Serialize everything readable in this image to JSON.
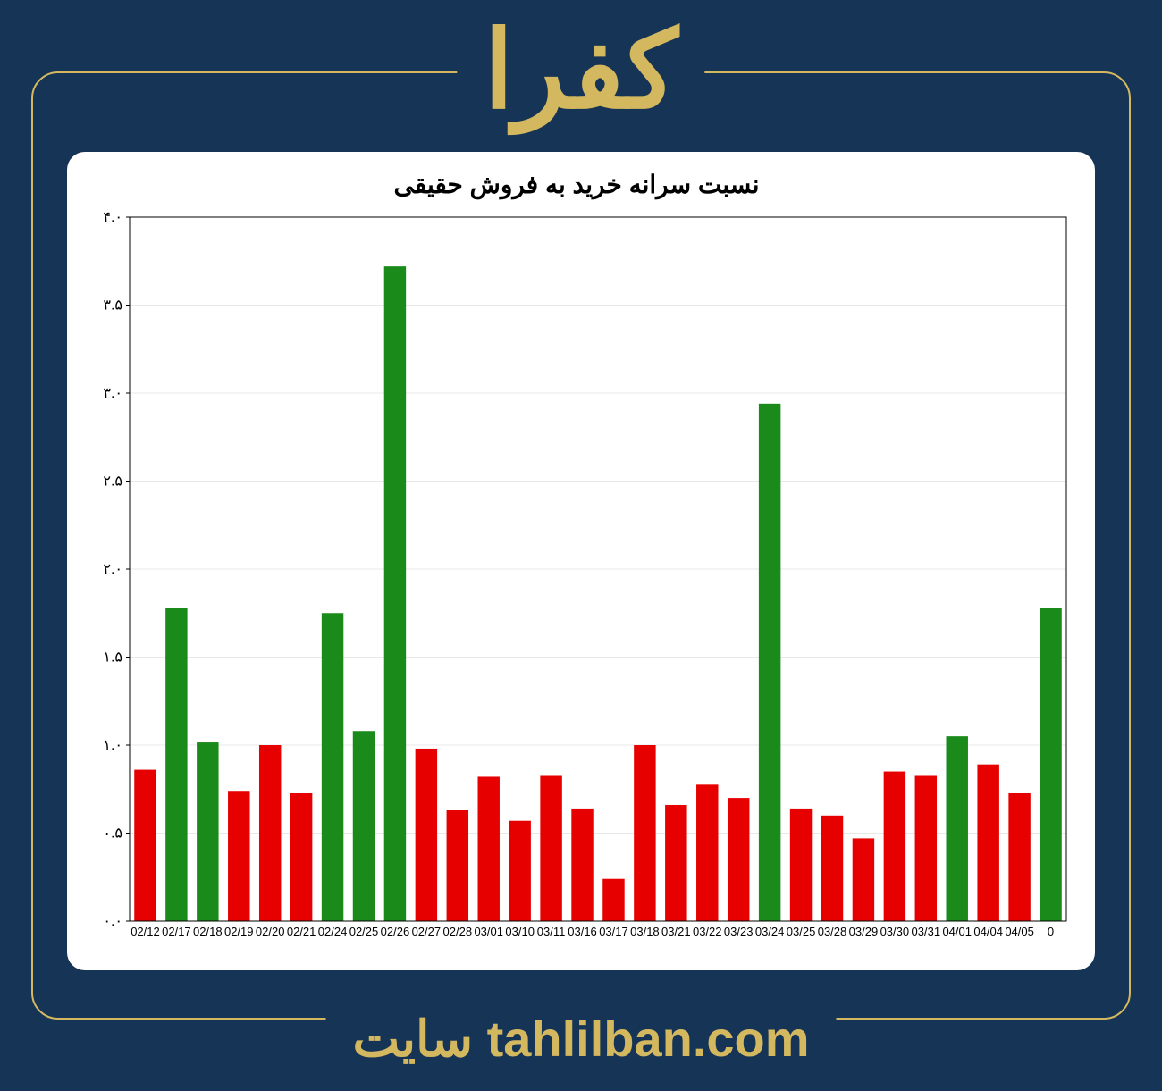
{
  "header": {
    "title": "کفرا"
  },
  "footer": {
    "text_site": "سایت",
    "text_url": "tahlilban.com"
  },
  "chart": {
    "type": "bar",
    "title": "نسبت سرانه خرید به فروش حقیقی",
    "title_fontsize": 28,
    "background_color": "#ffffff",
    "grid_color": "#e8e8e8",
    "bar_width_ratio": 0.7,
    "ylim": [
      0,
      4.0
    ],
    "yticks": [
      {
        "v": 0.0,
        "label": "٠.٠"
      },
      {
        "v": 0.5,
        "label": "٠.۵"
      },
      {
        "v": 1.0,
        "label": "١.٠"
      },
      {
        "v": 1.5,
        "label": "١.۵"
      },
      {
        "v": 2.0,
        "label": "٢.٠"
      },
      {
        "v": 2.5,
        "label": "٢.۵"
      },
      {
        "v": 3.0,
        "label": "٣.٠"
      },
      {
        "v": 3.5,
        "label": "٣.۵"
      },
      {
        "v": 4.0,
        "label": "۴.٠"
      }
    ],
    "color_green": "#1a8a1a",
    "color_red": "#e60000",
    "bars": [
      {
        "x": "02/12",
        "v": 0.86,
        "c": "red"
      },
      {
        "x": "02/17",
        "v": 1.78,
        "c": "green"
      },
      {
        "x": "02/18",
        "v": 1.02,
        "c": "green"
      },
      {
        "x": "02/19",
        "v": 0.74,
        "c": "red"
      },
      {
        "x": "02/20",
        "v": 1.0,
        "c": "red"
      },
      {
        "x": "02/21",
        "v": 0.73,
        "c": "red"
      },
      {
        "x": "02/24",
        "v": 1.75,
        "c": "green"
      },
      {
        "x": "02/25",
        "v": 1.08,
        "c": "green"
      },
      {
        "x": "02/26",
        "v": 3.72,
        "c": "green"
      },
      {
        "x": "02/27",
        "v": 0.98,
        "c": "red"
      },
      {
        "x": "02/28",
        "v": 0.63,
        "c": "red"
      },
      {
        "x": "03/01",
        "v": 0.82,
        "c": "red"
      },
      {
        "x": "03/10",
        "v": 0.57,
        "c": "red"
      },
      {
        "x": "03/11",
        "v": 0.83,
        "c": "red"
      },
      {
        "x": "03/16",
        "v": 0.64,
        "c": "red"
      },
      {
        "x": "03/17",
        "v": 0.24,
        "c": "red"
      },
      {
        "x": "03/18",
        "v": 1.0,
        "c": "red"
      },
      {
        "x": "03/21",
        "v": 0.66,
        "c": "red"
      },
      {
        "x": "03/22",
        "v": 0.78,
        "c": "red"
      },
      {
        "x": "03/23",
        "v": 0.7,
        "c": "red"
      },
      {
        "x": "03/24",
        "v": 2.94,
        "c": "green"
      },
      {
        "x": "03/25",
        "v": 0.64,
        "c": "red"
      },
      {
        "x": "03/28",
        "v": 0.6,
        "c": "red"
      },
      {
        "x": "03/29",
        "v": 0.47,
        "c": "red"
      },
      {
        "x": "03/30",
        "v": 0.85,
        "c": "red"
      },
      {
        "x": "03/31",
        "v": 0.83,
        "c": "red"
      },
      {
        "x": "04/01",
        "v": 1.05,
        "c": "green"
      },
      {
        "x": "04/04",
        "v": 0.89,
        "c": "red"
      },
      {
        "x": "04/05",
        "v": 0.73,
        "c": "red"
      },
      {
        "x": "0",
        "v": 1.78,
        "c": "green"
      }
    ]
  }
}
